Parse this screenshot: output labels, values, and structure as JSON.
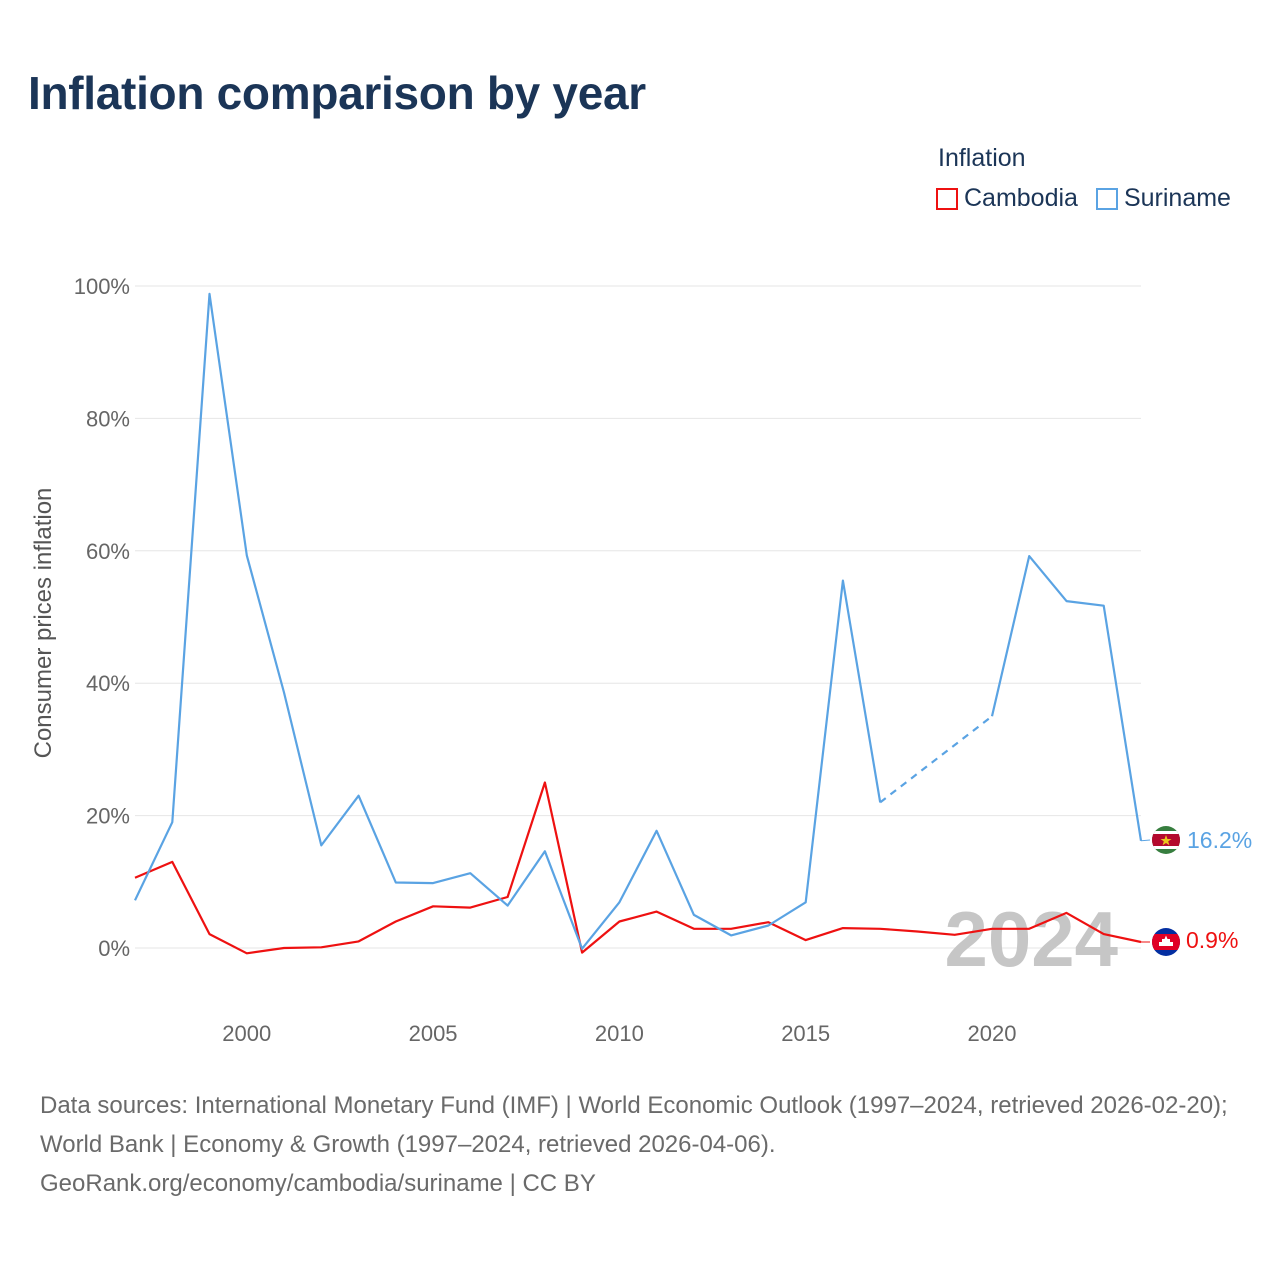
{
  "title": "Inflation comparison by year",
  "legend": {
    "title": "Inflation",
    "items": [
      {
        "label": "Cambodia",
        "color": "#ee1111"
      },
      {
        "label": "Suriname",
        "color": "#5aa3e3"
      }
    ]
  },
  "current_year": "2024",
  "end_labels": {
    "cambodia": "0.9%",
    "suriname": "16.2%"
  },
  "source": {
    "line1": "Data sources: International Monetary Fund (IMF) | World Economic Outlook (1997–2024, retrieved 2026-02-20); World Bank | Economy & Growth (1997–2024, retrieved 2026-04-06).",
    "line2": "GeoRank.org/economy/cambodia/suriname | CC BY"
  },
  "chart_data": {
    "type": "line",
    "title": "Inflation comparison by year",
    "xlabel": "",
    "ylabel": "Consumer prices inflation",
    "xlim": [
      1997,
      2024
    ],
    "ylim": [
      0,
      100
    ],
    "x_ticks": [
      2000,
      2005,
      2010,
      2015,
      2020
    ],
    "y_ticks": [
      0,
      20,
      40,
      60,
      80,
      100
    ],
    "y_tick_labels": [
      "0%",
      "20%",
      "40%",
      "60%",
      "80%",
      "100%"
    ],
    "grid": true,
    "legend_position": "top-right",
    "x": [
      1997,
      1998,
      1999,
      2000,
      2001,
      2002,
      2003,
      2004,
      2005,
      2006,
      2007,
      2008,
      2009,
      2010,
      2011,
      2012,
      2013,
      2014,
      2015,
      2016,
      2017,
      2018,
      2019,
      2020,
      2021,
      2022,
      2023,
      2024
    ],
    "series": [
      {
        "name": "Cambodia",
        "color": "#ee1111",
        "values": [
          10.6,
          13.0,
          2.1,
          -0.8,
          0.0,
          0.1,
          1.0,
          4.0,
          6.3,
          6.1,
          7.7,
          25.0,
          -0.7,
          4.0,
          5.5,
          2.9,
          2.9,
          3.9,
          1.2,
          3.0,
          2.9,
          2.5,
          2.0,
          2.9,
          2.9,
          5.3,
          2.1,
          0.9
        ]
      },
      {
        "name": "Suriname",
        "color": "#5aa3e3",
        "values": [
          7.2,
          19.0,
          98.8,
          59.3,
          38.6,
          15.5,
          23.0,
          9.9,
          9.8,
          11.3,
          6.4,
          14.6,
          -0.1,
          6.9,
          17.7,
          5.0,
          1.9,
          3.4,
          6.9,
          55.5,
          22.0,
          null,
          null,
          35.0,
          59.2,
          52.4,
          51.7,
          16.2
        ],
        "dashed_gap": {
          "from": 2017,
          "to": 2020
        }
      }
    ]
  }
}
